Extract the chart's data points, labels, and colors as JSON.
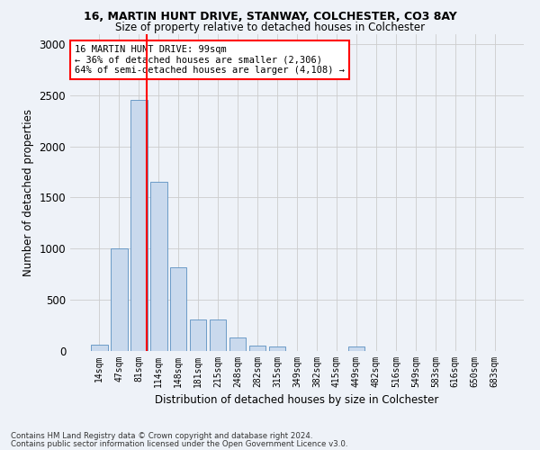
{
  "title1": "16, MARTIN HUNT DRIVE, STANWAY, COLCHESTER, CO3 8AY",
  "title2": "Size of property relative to detached houses in Colchester",
  "xlabel": "Distribution of detached houses by size in Colchester",
  "ylabel": "Number of detached properties",
  "categories": [
    "14sqm",
    "47sqm",
    "81sqm",
    "114sqm",
    "148sqm",
    "181sqm",
    "215sqm",
    "248sqm",
    "282sqm",
    "315sqm",
    "349sqm",
    "382sqm",
    "415sqm",
    "449sqm",
    "482sqm",
    "516sqm",
    "549sqm",
    "583sqm",
    "616sqm",
    "650sqm",
    "683sqm"
  ],
  "values": [
    60,
    1000,
    2450,
    1650,
    820,
    310,
    310,
    130,
    50,
    45,
    0,
    0,
    0,
    40,
    0,
    0,
    0,
    0,
    0,
    0,
    0
  ],
  "bar_color": "#c9d9ed",
  "bar_edge_color": "#5a8fc0",
  "grid_color": "#cccccc",
  "vline_color": "red",
  "annotation_text": "16 MARTIN HUNT DRIVE: 99sqm\n← 36% of detached houses are smaller (2,306)\n64% of semi-detached houses are larger (4,108) →",
  "annotation_box_color": "white",
  "annotation_box_edge": "red",
  "footnote1": "Contains HM Land Registry data © Crown copyright and database right 2024.",
  "footnote2": "Contains public sector information licensed under the Open Government Licence v3.0.",
  "ylim": [
    0,
    3100
  ],
  "yticks": [
    0,
    500,
    1000,
    1500,
    2000,
    2500,
    3000
  ],
  "background_color": "#eef2f8",
  "vline_pos": 2.42
}
